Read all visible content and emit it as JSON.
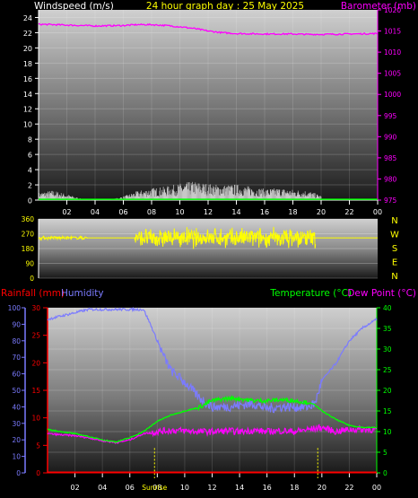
{
  "colors": {
    "wind": "#ffffff",
    "gust": "#c8c8c8",
    "avg_wind": "#00ff00",
    "barometer": "#ff00ff",
    "direction": "#ffff00",
    "humidity": "#7b7bff",
    "temperature": "#00ff00",
    "dewpoint": "#ff00ff",
    "rain": "#ff0000",
    "title": "#ffff00",
    "sun": "#ffff00",
    "axis_text": "#ffffff"
  },
  "header": {
    "wind_label": "Windspeed (m/s)",
    "title": "24 hour graph day : 25 May 2025",
    "baro_label": "Barometer (mb)"
  },
  "legend2": {
    "rain_label": "Rainfall (mm)",
    "hum_label": "Humidity",
    "temp_label": "Temperature (°C)",
    "dew_label": "Dew Point (°C)"
  },
  "chart_data": [
    {
      "type": "line",
      "name": "wind-barometer",
      "x_ticks": [
        "02",
        "04",
        "06",
        "08",
        "10",
        "12",
        "14",
        "16",
        "18",
        "20",
        "22",
        "00"
      ],
      "left_axis": {
        "label": "Windspeed (m/s)",
        "range": [
          0,
          25
        ],
        "ticks": [
          0,
          2,
          4,
          6,
          8,
          10,
          12,
          14,
          16,
          18,
          20,
          22,
          24
        ]
      },
      "right_axis": {
        "label": "Barometer (mb)",
        "range": [
          975,
          1020
        ],
        "ticks": [
          975,
          980,
          985,
          990,
          995,
          1000,
          1005,
          1010,
          1015,
          1020
        ]
      },
      "barometer": {
        "hours": [
          0,
          2,
          4,
          6,
          7,
          8,
          9,
          10,
          11,
          12,
          13,
          14,
          16,
          18,
          19,
          20,
          22,
          24
        ],
        "values": [
          1016.6,
          1016.4,
          1016.2,
          1016.3,
          1016.5,
          1016.5,
          1016.3,
          1016.0,
          1015.6,
          1015.0,
          1014.6,
          1014.4,
          1014.3,
          1014.3,
          1014.2,
          1014.2,
          1014.3,
          1014.4
        ]
      },
      "wind_gust_envelope": {
        "hours": [
          0,
          1,
          2,
          3,
          4,
          5,
          6,
          7,
          8,
          9,
          10,
          11,
          12,
          13,
          14,
          15,
          16,
          17,
          18,
          19,
          20
        ],
        "values": [
          1.0,
          1.3,
          0.8,
          0.2,
          0.0,
          0.0,
          0.5,
          1.2,
          1.6,
          1.8,
          2.2,
          2.5,
          2.2,
          2.0,
          2.1,
          1.8,
          1.5,
          1.6,
          1.4,
          1.3,
          0.6
        ]
      },
      "avg_wind": {
        "hours": [
          0,
          24
        ],
        "values": [
          0.1,
          0.1
        ]
      }
    },
    {
      "type": "scatter",
      "name": "wind-direction",
      "x_ticks": [
        "02",
        "04",
        "06",
        "08",
        "10",
        "12",
        "14",
        "16",
        "18",
        "20",
        "22",
        "00"
      ],
      "left_axis": {
        "range": [
          0,
          360
        ],
        "ticks": [
          0,
          90,
          180,
          270,
          360
        ]
      },
      "right_axis_labels": [
        "N",
        "W",
        "S",
        "E",
        "N"
      ],
      "mean_direction": 245,
      "segments": [
        {
          "hours": [
            0,
            3.5
          ],
          "spread": 12
        },
        {
          "hours": [
            6.8,
            19.6
          ],
          "spread": 70
        }
      ],
      "reference_line": {
        "hours": [
          3.5,
          24
        ],
        "value": 245
      }
    },
    {
      "type": "line",
      "name": "temp-humidity",
      "x_ticks": [
        "02",
        "04",
        "06",
        "08",
        "10",
        "12",
        "14",
        "16",
        "18",
        "20",
        "22",
        "00"
      ],
      "sun_labels": {
        "sunrise": "Sunrise",
        "sunset": ""
      },
      "sun_hours": {
        "sunrise": 7.8,
        "sunset": 19.7
      },
      "humidity_axis": {
        "label": "Humidity",
        "range": [
          0,
          100
        ],
        "ticks": [
          0,
          10,
          20,
          30,
          40,
          50,
          60,
          70,
          80,
          90,
          100
        ]
      },
      "rain_axis": {
        "label": "Rainfall (mm)",
        "range": [
          0,
          30
        ],
        "ticks": [
          0,
          5,
          10,
          15,
          20,
          25,
          30
        ]
      },
      "temp_axis": {
        "label": "Temperature (°C)",
        "range": [
          0,
          40
        ],
        "ticks": [
          0,
          5,
          10,
          15,
          20,
          25,
          30,
          35,
          40
        ]
      },
      "humidity": {
        "hours": [
          0,
          1,
          2,
          3,
          4,
          5,
          6,
          7,
          7.5,
          8,
          8.5,
          9,
          10,
          11,
          12,
          13,
          14,
          15,
          16,
          17,
          18,
          19,
          19.5,
          20,
          21,
          22,
          23,
          24
        ],
        "values": [
          93,
          95,
          97,
          99,
          99,
          99,
          99,
          99,
          90,
          80,
          70,
          62,
          55,
          46,
          40,
          40,
          41,
          42,
          39,
          40,
          40,
          40,
          42,
          56,
          66,
          80,
          88,
          93
        ]
      },
      "temperature": {
        "hours": [
          0,
          1,
          2,
          3,
          4,
          5,
          6,
          7,
          8,
          9,
          10,
          11,
          12,
          13,
          14,
          15,
          16,
          17,
          18,
          19,
          19.5,
          20,
          21,
          22,
          23,
          24
        ],
        "values": [
          10.5,
          10.0,
          9.5,
          8.8,
          8.0,
          7.5,
          8.5,
          10.0,
          12.5,
          14.0,
          15.0,
          15.8,
          17.5,
          18.0,
          18.0,
          17.5,
          17.5,
          17.7,
          17.5,
          17.0,
          16.5,
          15.0,
          13.0,
          11.5,
          11.0,
          11.0
        ]
      },
      "dewpoint": {
        "hours": [
          0,
          1,
          2,
          3,
          4,
          5,
          6,
          7,
          8,
          9,
          10,
          11,
          12,
          13,
          14,
          15,
          16,
          17,
          18,
          19,
          20,
          21,
          22,
          23,
          24
        ],
        "values": [
          9.5,
          9.2,
          9.0,
          8.5,
          7.8,
          7.3,
          8.0,
          9.5,
          10.0,
          10.3,
          10.2,
          10.0,
          10.0,
          10.2,
          10.0,
          10.3,
          10.0,
          10.2,
          10.0,
          10.5,
          11.0,
          10.0,
          10.5,
          10.5,
          10.5
        ]
      },
      "rain": {
        "hours": [
          0,
          24
        ],
        "values": [
          0,
          0
        ]
      }
    }
  ]
}
